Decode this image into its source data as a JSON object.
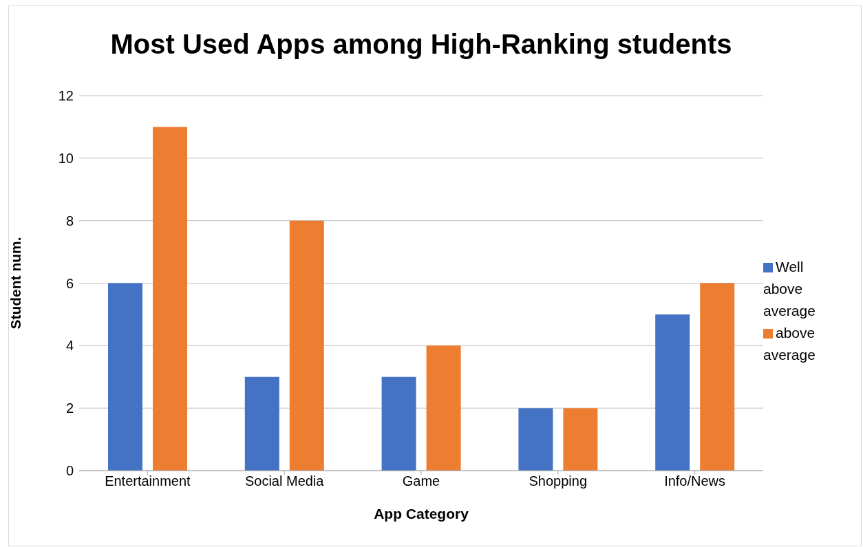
{
  "chart_data": {
    "type": "bar",
    "title": "Most Used Apps among High-Ranking students",
    "xlabel": "App Category",
    "ylabel": "Student num.",
    "categories": [
      "Entertainment",
      "Social Media",
      "Game",
      "Shopping",
      "Info/News"
    ],
    "series": [
      {
        "name": "Well above average",
        "color": "#4472c4",
        "values": [
          6,
          3,
          3,
          2,
          5
        ]
      },
      {
        "name": "above average",
        "color": "#ed7d31",
        "values": [
          11,
          8,
          4,
          2,
          6
        ]
      }
    ],
    "ylim": [
      0,
      12
    ],
    "yticks": [
      0,
      2,
      4,
      6,
      8,
      10,
      12
    ],
    "grid": "y",
    "legend": "right"
  }
}
